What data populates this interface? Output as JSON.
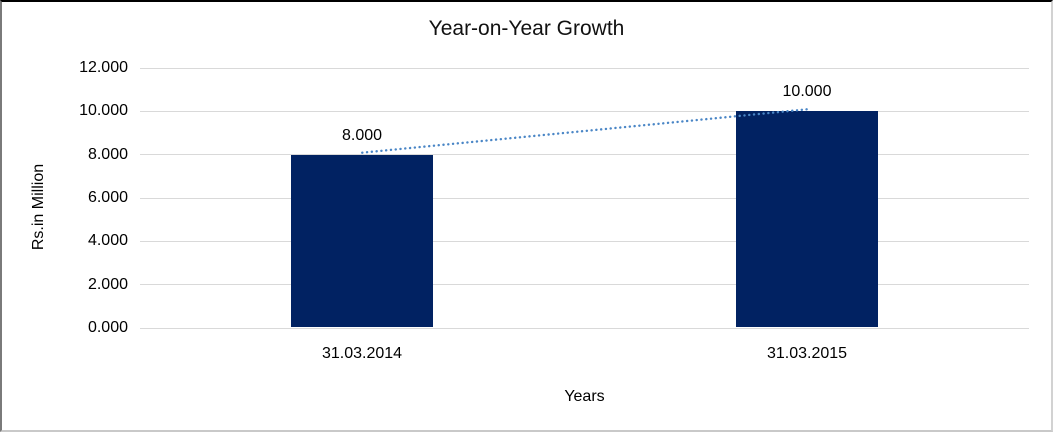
{
  "chart_data": {
    "type": "bar",
    "title": "Year-on-Year Growth",
    "xlabel": "Years",
    "ylabel": "Rs.in Million",
    "categories": [
      "31.03.2014",
      "31.03.2015"
    ],
    "values": [
      8000,
      10000
    ],
    "value_labels": [
      "8.000",
      "10.000"
    ],
    "ylim": [
      0,
      12000
    ],
    "yticks": [
      "0.000",
      "2.000",
      "4.000",
      "6.000",
      "8.000",
      "10.000",
      "12.000"
    ],
    "grid": true,
    "legend": "none",
    "colors": {
      "bar": "#012262",
      "trendline": "#4a86c6",
      "gridline": "#d9d9d9",
      "text": "#000000"
    },
    "trendline": {
      "style": "dotted",
      "from": "31.03.2014",
      "to": "31.03.2015"
    }
  }
}
